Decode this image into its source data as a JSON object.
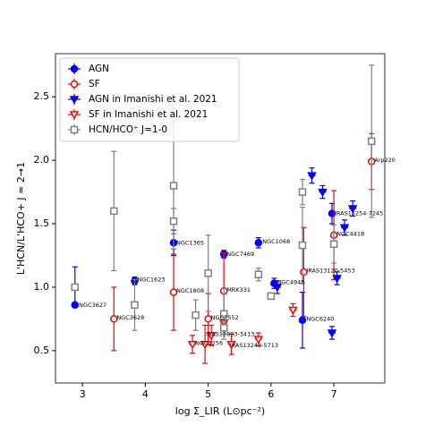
{
  "chart_data": {
    "type": "scatter",
    "xlabel": "log Σ_LIR (L⊙pc⁻²)",
    "ylabel": "L'HCN/L'HCO+ J = 2→1",
    "xlim": [
      2.57,
      7.81
    ],
    "ylim": [
      0.245,
      2.84
    ],
    "xticks": [
      3,
      4,
      5,
      6,
      7
    ],
    "yticks": [
      0.5,
      {
        "value": 1.0,
        "label": "1.0"
      },
      1.5,
      {
        "value": 2.0,
        "label": "2.0"
      },
      2.5
    ],
    "legend": "upper left",
    "series": [
      {
        "name": "AGN",
        "color": "#0000ff",
        "marker": "circle",
        "filled": true,
        "x": [
          2.88,
          3.83,
          4.45,
          5.25,
          5.8,
          6.05,
          6.5,
          6.97
        ],
        "values": [
          0.86,
          1.05,
          1.35,
          1.26,
          1.35,
          1.03,
          0.74,
          1.58
        ],
        "yerr": [
          [
            0.02,
            0.3
          ],
          [
            0.03,
            0.03
          ],
          [
            0.1,
            0.1
          ],
          [
            0.03,
            0.03
          ],
          [
            0.04,
            0.04
          ],
          [
            0.04,
            0.04
          ],
          [
            0.22,
            0.22
          ],
          [
            0.08,
            0.08
          ]
        ]
      },
      {
        "name": "SF",
        "color": "#ff0000",
        "marker": "circle",
        "filled": false,
        "x": [
          3.5,
          4.45,
          5.0,
          5.25,
          6.52,
          7.0,
          7.6
        ],
        "values": [
          0.75,
          0.96,
          0.75,
          0.97,
          1.12,
          1.41,
          1.99
        ],
        "yerr": [
          [
            0.25,
            0.25
          ],
          [
            0.3,
            0.3
          ],
          [
            0.2,
            0.2
          ],
          [
            0.3,
            0.3
          ],
          [
            0.35,
            0.35
          ],
          [
            0.35,
            0.35
          ],
          [
            0.22,
            0.22
          ]
        ]
      },
      {
        "name": "AGN in Imanishi et al. 2021",
        "color": "#0000ff",
        "marker": "triangle",
        "filled": true,
        "x": [
          6.65,
          6.82,
          7.17,
          7.3,
          7.05,
          6.97,
          6.1
        ],
        "values": [
          1.88,
          1.75,
          1.47,
          1.62,
          1.07,
          0.64,
          1.0
        ],
        "yerr": [
          [
            0.06,
            0.06
          ],
          [
            0.05,
            0.05
          ],
          [
            0.06,
            0.06
          ],
          [
            0.06,
            0.06
          ],
          [
            0.05,
            0.05
          ],
          [
            0.05,
            0.05
          ],
          [
            0.05,
            0.05
          ]
        ]
      },
      {
        "name": "SF in Imanishi et al. 2021",
        "color": "#ff0000",
        "marker": "triangle",
        "filled": false,
        "x": [
          4.75,
          4.95,
          5.05,
          5.37,
          5.25,
          5.8,
          6.35
        ],
        "values": [
          0.55,
          0.55,
          0.62,
          0.55,
          0.72,
          0.59,
          0.82
        ],
        "yerr": [
          [
            0.07,
            0.07
          ],
          [
            0.15,
            0.15
          ],
          [
            0.08,
            0.08
          ],
          [
            0.08,
            0.08
          ],
          [
            0.06,
            0.06
          ],
          [
            0.05,
            0.05
          ],
          [
            0.05,
            0.05
          ]
        ]
      },
      {
        "name": "HCN/HCO⁺ J=1-0",
        "color": "#808080",
        "marker": "square",
        "filled": false,
        "x": [
          2.88,
          3.5,
          3.83,
          4.45,
          4.45,
          4.8,
          5.0,
          5.25,
          5.25,
          5.8,
          6.0,
          6.5,
          6.5,
          7.0,
          7.6
        ],
        "values": [
          1.0,
          1.6,
          0.86,
          1.8,
          1.52,
          0.78,
          1.11,
          0.79,
          0.68,
          1.1,
          0.93,
          1.75,
          1.33,
          1.34,
          2.15
        ],
        "yerr": [
          [
            0.02,
            0.02
          ],
          [
            0.47,
            0.47
          ],
          [
            0.2,
            0.2
          ],
          [
            0.5,
            0.5
          ],
          [
            0.1,
            0.1
          ],
          [
            0.12,
            0.12
          ],
          [
            0.3,
            0.3
          ],
          [
            0.2,
            0.2
          ],
          [
            0.05,
            0.05
          ],
          [
            0.05,
            0.05
          ],
          [
            0.02,
            0.02
          ],
          [
            0.1,
            0.1
          ],
          [
            0.3,
            0.3
          ],
          [
            0.15,
            0.15
          ],
          [
            0.6,
            0.6
          ]
        ]
      }
    ],
    "annotations": [
      {
        "text": "NGC3627",
        "x": 2.9,
        "y": 0.86
      },
      {
        "text": "NGC1623",
        "x": 3.83,
        "y": 1.06
      },
      {
        "text": "NGC1365",
        "x": 4.45,
        "y": 1.35
      },
      {
        "text": "NGC7469",
        "x": 5.25,
        "y": 1.26
      },
      {
        "text": "NGC1068",
        "x": 5.82,
        "y": 1.36
      },
      {
        "text": "NGC4945",
        "x": 6.05,
        "y": 1.04
      },
      {
        "text": "NGC6240",
        "x": 6.52,
        "y": 0.75
      },
      {
        "text": "IRAS13120-5453",
        "x": 6.52,
        "y": 1.13
      },
      {
        "text": "IRAS15254-7245",
        "x": 6.97,
        "y": 1.58
      },
      {
        "text": "NGC4418",
        "x": 7.0,
        "y": 1.42
      },
      {
        "text": "Arp220",
        "x": 7.6,
        "y": 2.0
      },
      {
        "text": "NGC3628",
        "x": 3.5,
        "y": 0.76
      },
      {
        "text": "NGC1808",
        "x": 4.45,
        "y": 0.97
      },
      {
        "text": "NGC7552",
        "x": 5.0,
        "y": 0.76
      },
      {
        "text": "MRK331",
        "x": 5.25,
        "y": 0.98
      },
      {
        "text": "IRAS12893-3413",
        "x": 4.92,
        "y": 0.63
      },
      {
        "text": "NGC3256",
        "x": 4.75,
        "y": 0.56
      },
      {
        "text": "IRAS13242-5713",
        "x": 5.3,
        "y": 0.54
      }
    ]
  }
}
